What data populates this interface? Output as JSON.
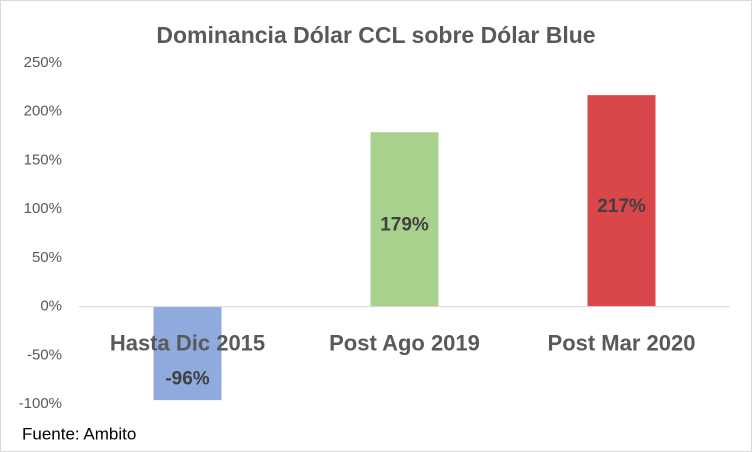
{
  "chart_data": {
    "type": "bar",
    "title": "Dominancia Dólar CCL sobre Dólar Blue",
    "categories": [
      "Hasta Dic 2015",
      "Post Ago 2019",
      "Post Mar 2020"
    ],
    "values": [
      -96,
      179,
      217
    ],
    "value_labels": [
      "-96%",
      "179%",
      "217%"
    ],
    "colors": [
      "#8faadc",
      "#a9d18e",
      "#d9474a"
    ],
    "ylim": [
      -100,
      250
    ],
    "yticks": [
      {
        "value": -100,
        "label": "-100%"
      },
      {
        "value": -50,
        "label": "-50%"
      },
      {
        "value": 0,
        "label": "0%"
      },
      {
        "value": 50,
        "label": "50%"
      },
      {
        "value": 100,
        "label": "100%"
      },
      {
        "value": 150,
        "label": "150%"
      },
      {
        "value": 200,
        "label": "200%"
      },
      {
        "value": 250,
        "label": "250%"
      }
    ],
    "grid": false,
    "source": "Fuente: Ambito"
  }
}
